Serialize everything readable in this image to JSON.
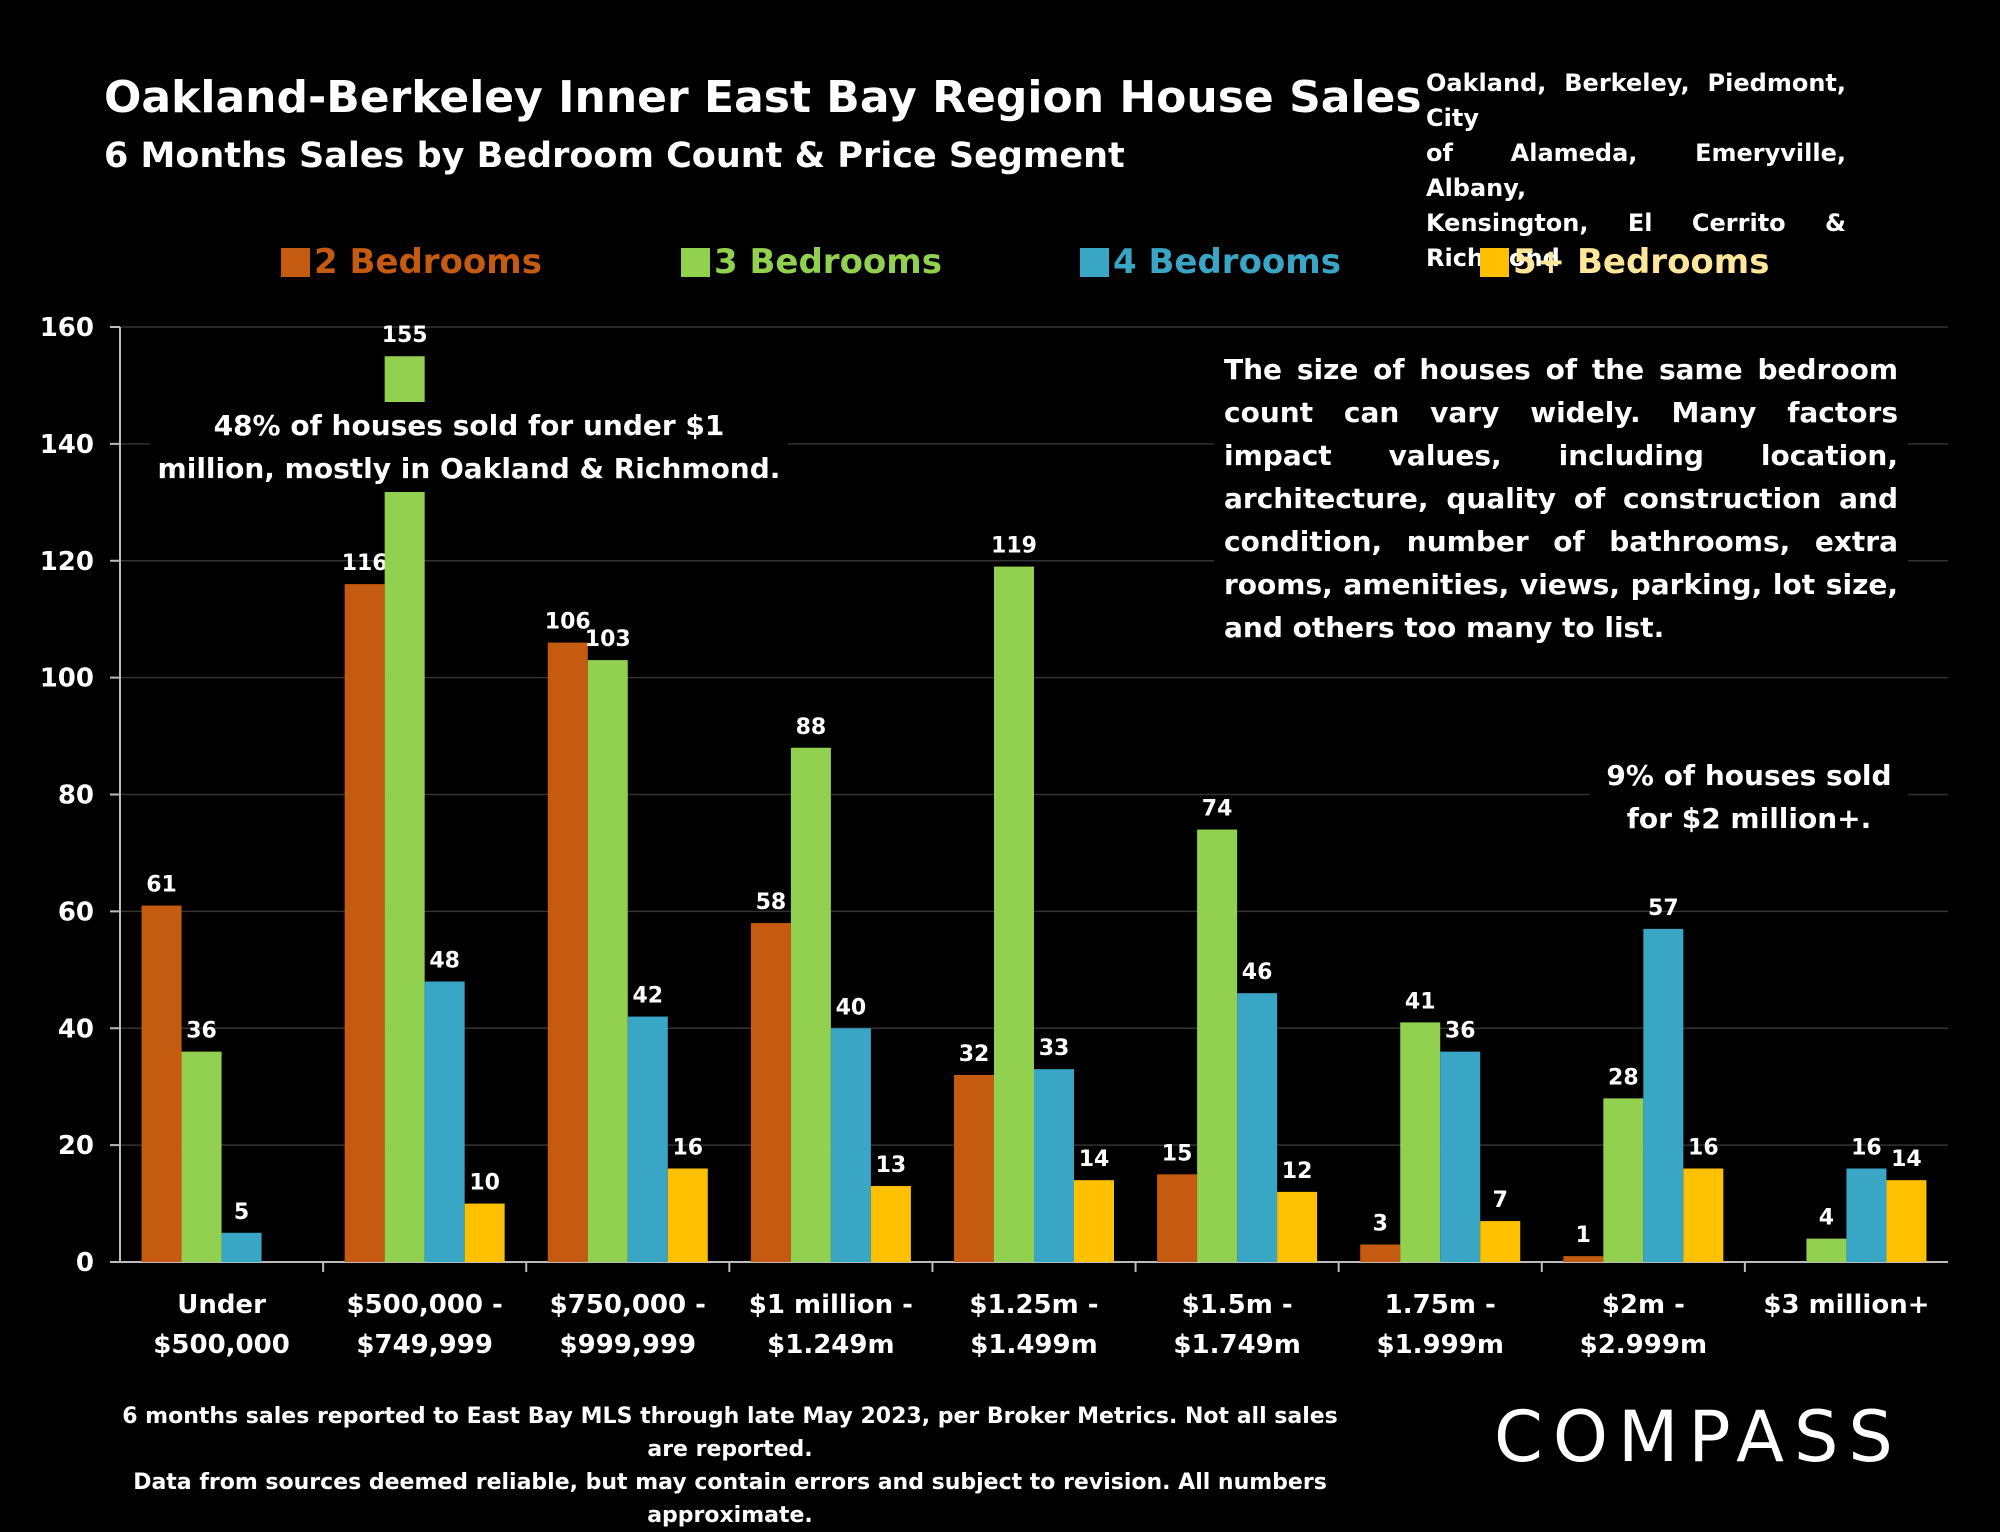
{
  "header": {
    "title": "Oakland-Berkeley Inner East Bay Region House Sales",
    "subtitle": "6 Months Sales by Bedroom Count & Price Segment",
    "region_lines": [
      "Oakland, Berkeley, Piedmont, City",
      "of Alameda, Emeryville, Albany,",
      "Kensington, El Cerrito & Richmond"
    ]
  },
  "annotations": {
    "left_note": "48% of houses sold for under $1 million, mostly in Oakland & Richmond.",
    "right_note": "The size of houses of the same bedroom count can vary widely. Many factors impact values, including  location, architecture, quality of construction and condition, number of bathrooms, extra rooms, amenities, views,  parking, lot size, and others too many to list.",
    "right_note2": "9% of houses sold for $2 million+."
  },
  "footer": {
    "line1": "6 months sales reported to East Bay MLS through late May 2023, per Broker Metrics. Not all sales are reported.",
    "line2": "Data from sources deemed reliable, but may contain errors and subject to revision. All numbers approximate.",
    "logo": "COMPASS"
  },
  "chart_data": {
    "type": "bar",
    "categories": [
      [
        "Under",
        "$500,000"
      ],
      [
        "$500,000 -",
        "$749,999"
      ],
      [
        "$750,000 -",
        "$999,999"
      ],
      [
        "$1 million -",
        "$1.249m"
      ],
      [
        "$1.25m -",
        "$1.499m"
      ],
      [
        "$1.5m -",
        "$1.749m"
      ],
      [
        "1.75m -",
        "$1.999m"
      ],
      [
        "$2m -",
        "$2.999m"
      ],
      [
        "$3 million+"
      ]
    ],
    "series": [
      {
        "name": "2 Bedrooms",
        "color": "#C55A11",
        "values": [
          61,
          116,
          106,
          58,
          32,
          15,
          3,
          1,
          null
        ]
      },
      {
        "name": "3 Bedrooms",
        "color": "#92D050",
        "values": [
          36,
          155,
          103,
          88,
          119,
          74,
          41,
          28,
          4
        ]
      },
      {
        "name": "4 Bedrooms",
        "color": "#3AA6C6",
        "values": [
          5,
          48,
          42,
          40,
          33,
          46,
          36,
          57,
          16
        ]
      },
      {
        "name": "5+ Bedrooms",
        "color": "#FFC000",
        "values": [
          null,
          10,
          16,
          13,
          14,
          12,
          7,
          16,
          14
        ]
      }
    ],
    "ylim": [
      0,
      160
    ],
    "yticks": [
      0,
      20,
      40,
      60,
      80,
      100,
      120,
      140,
      160
    ],
    "grid": true,
    "legend": "top",
    "label_colors": {
      "series_legend": [
        "#C55A11",
        "#92D050",
        "#3AA6C6",
        "#FFE699"
      ]
    }
  }
}
